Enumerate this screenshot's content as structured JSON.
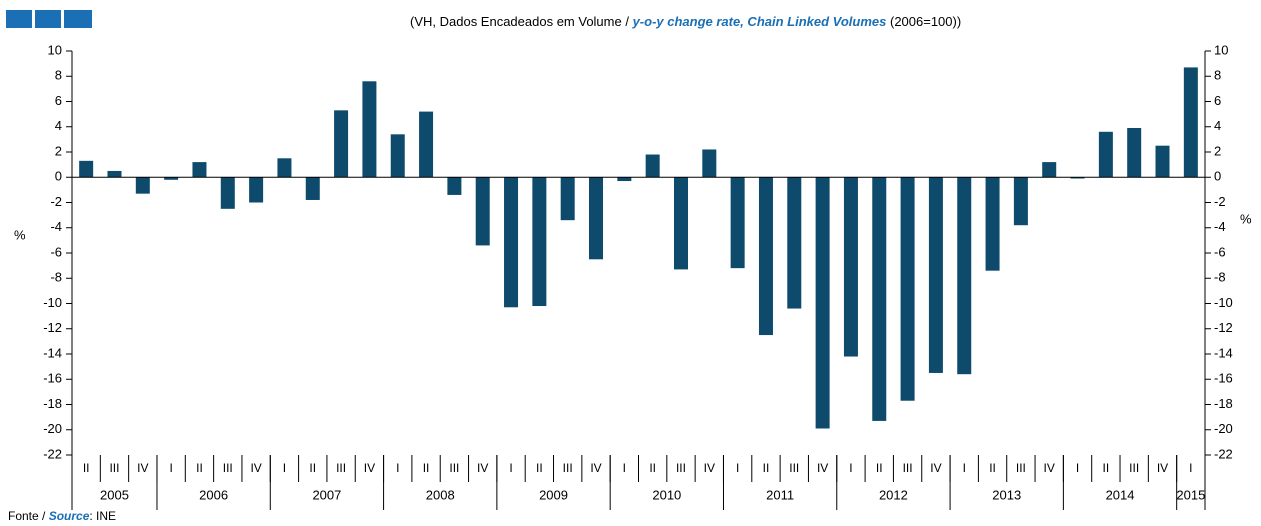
{
  "chart_data": {
    "type": "bar",
    "title_parts": [
      "(VH, Dados Encadeados em Volume / ",
      "y-o-y change rate, Chain Linked Volumes",
      " (2006=100))"
    ],
    "ylabel": "%",
    "y2label": "%",
    "source_parts": [
      "Fonte / ",
      "Source",
      ": INE"
    ],
    "color": "#0d4a6b",
    "categories": [
      "II",
      "III",
      "IV",
      "I",
      "II",
      "III",
      "IV",
      "I",
      "II",
      "III",
      "IV",
      "I",
      "II",
      "III",
      "IV",
      "I",
      "II",
      "III",
      "IV",
      "I",
      "II",
      "III",
      "IV",
      "I",
      "II",
      "III",
      "IV",
      "I",
      "II",
      "III",
      "IV",
      "I",
      "II",
      "III",
      "IV",
      "I",
      "II",
      "III",
      "IV",
      "I"
    ],
    "years": [
      "2005",
      "2006",
      "2007",
      "2008",
      "2009",
      "2010",
      "2011",
      "2012",
      "2013",
      "2014",
      "2015"
    ],
    "values": [
      1.3,
      0.5,
      -1.3,
      -0.2,
      1.2,
      -2.5,
      -2.0,
      1.5,
      -1.8,
      5.3,
      7.6,
      3.4,
      5.2,
      -1.4,
      -5.4,
      -10.3,
      -10.2,
      -3.4,
      -6.5,
      -0.3,
      1.8,
      -7.3,
      2.2,
      -7.2,
      -12.5,
      -10.4,
      -19.9,
      -14.2,
      -19.3,
      -17.7,
      -15.5,
      -15.6,
      -7.4,
      -3.8,
      1.2,
      -0.1,
      3.6,
      3.9,
      2.5,
      8.7
    ],
    "ylim": [
      -22,
      10
    ],
    "yticks": [
      10,
      8,
      6,
      4,
      2,
      0,
      -2,
      -4,
      -6,
      -8,
      -10,
      -12,
      -14,
      -16,
      -18,
      -20,
      -22
    ],
    "y2lim": [
      -22,
      10
    ],
    "y2ticks": [
      10,
      8,
      6,
      4,
      2,
      0,
      -2,
      -4,
      -6,
      -8,
      -10,
      -12,
      -14,
      -16,
      -18,
      -20,
      -22
    ]
  }
}
